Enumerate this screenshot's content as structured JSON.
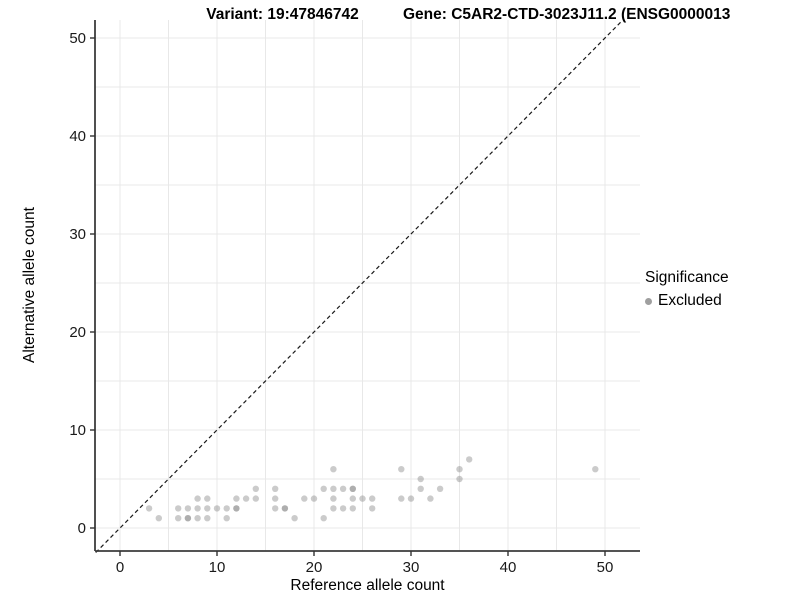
{
  "titles": {
    "variant": "Variant: 19:47846742",
    "gene": "Gene: C5AR2-CTD-3023J11.2 (ENSG0000013"
  },
  "axes": {
    "x_label": "Reference allele count",
    "y_label": "Alternative allele count"
  },
  "legend": {
    "title": "Significance",
    "items": [
      {
        "label": "Excluded",
        "color": "#9f9f9f"
      }
    ]
  },
  "colors": {
    "grid": "#e8e8e8",
    "axis": "#3c3c3c",
    "tick": "#333333",
    "identity_line": "#1a1a1a",
    "point_fill": "#8c8c8c",
    "point_opacity": "0.45",
    "background": "#ffffff"
  },
  "chart_data": {
    "type": "scatter",
    "title_left": "Variant: 19:47846742",
    "title_right": "Gene: C5AR2-CTD-3023J11.2 (ENSG0000013",
    "xlabel": "Reference allele count",
    "ylabel": "Alternative allele count",
    "xlim": [
      -2.6,
      53.6
    ],
    "ylim": [
      -2.3,
      51.8
    ],
    "x_ticks": [
      0,
      10,
      20,
      30,
      40,
      50
    ],
    "y_ticks": [
      0,
      10,
      20,
      30,
      40,
      50
    ],
    "grid": "major and minor every 5, light gray, on white",
    "legend_position": "right",
    "identity_line": {
      "show": true,
      "style": "dashed",
      "equation": "y = x"
    },
    "series": [
      {
        "name": "Excluded",
        "points": [
          [
            4,
            1
          ],
          [
            6,
            1
          ],
          [
            7,
            1
          ],
          [
            7,
            1
          ],
          [
            8,
            1
          ],
          [
            9,
            1
          ],
          [
            11,
            1
          ],
          [
            18,
            1
          ],
          [
            21,
            1
          ],
          [
            3,
            2
          ],
          [
            6,
            2
          ],
          [
            7,
            2
          ],
          [
            8,
            2
          ],
          [
            9,
            2
          ],
          [
            10,
            2
          ],
          [
            11,
            2
          ],
          [
            12,
            2
          ],
          [
            12,
            2
          ],
          [
            16,
            2
          ],
          [
            17,
            2
          ],
          [
            17,
            2
          ],
          [
            22,
            2
          ],
          [
            23,
            2
          ],
          [
            24,
            2
          ],
          [
            26,
            2
          ],
          [
            8,
            3
          ],
          [
            9,
            3
          ],
          [
            12,
            3
          ],
          [
            13,
            3
          ],
          [
            14,
            3
          ],
          [
            16,
            3
          ],
          [
            19,
            3
          ],
          [
            20,
            3
          ],
          [
            22,
            3
          ],
          [
            24,
            3
          ],
          [
            25,
            3
          ],
          [
            26,
            3
          ],
          [
            29,
            3
          ],
          [
            30,
            3
          ],
          [
            32,
            3
          ],
          [
            14,
            4
          ],
          [
            16,
            4
          ],
          [
            21,
            4
          ],
          [
            22,
            4
          ],
          [
            23,
            4
          ],
          [
            24,
            4
          ],
          [
            24,
            4
          ],
          [
            31,
            4
          ],
          [
            33,
            4
          ],
          [
            31,
            5
          ],
          [
            35,
            5
          ],
          [
            22,
            6
          ],
          [
            29,
            6
          ],
          [
            35,
            6
          ],
          [
            49,
            6
          ],
          [
            36,
            7
          ]
        ]
      }
    ]
  }
}
